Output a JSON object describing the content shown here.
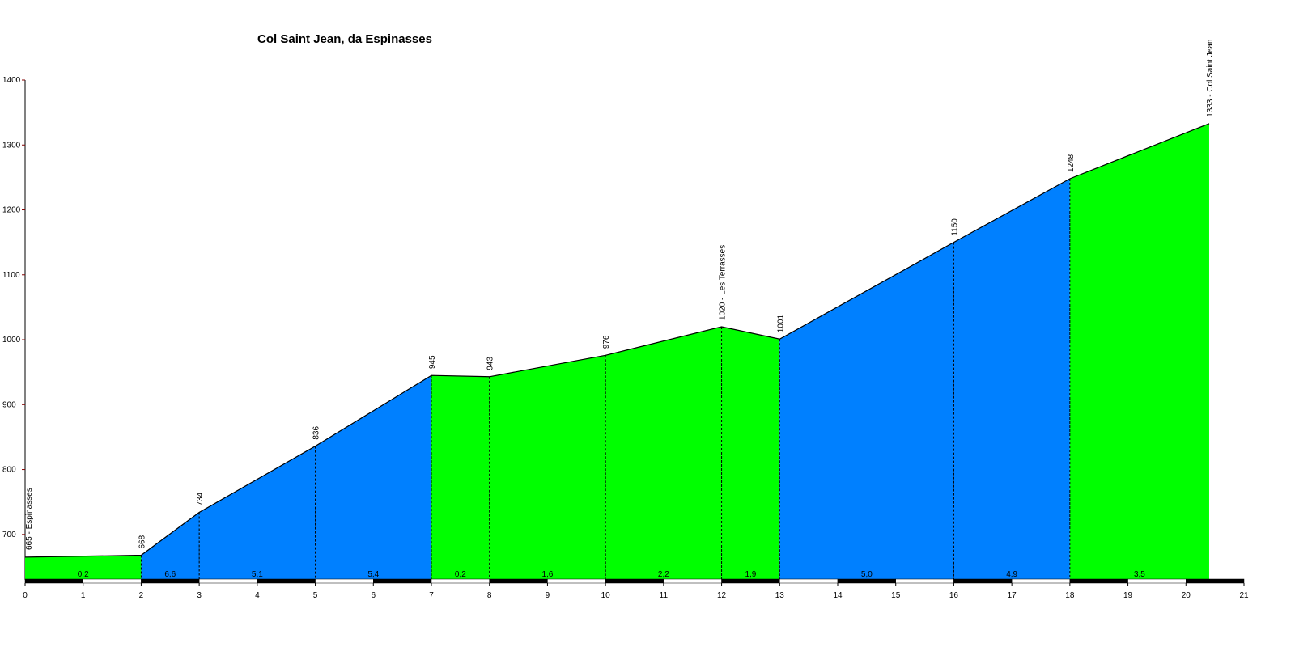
{
  "chart_data": {
    "type": "area",
    "title": "Col Saint Jean, da Espinasses",
    "x": [
      0,
      2,
      3,
      5,
      7,
      8,
      10,
      12,
      13,
      16,
      18,
      20.4
    ],
    "values": [
      665,
      668,
      734,
      836,
      945,
      943,
      976,
      1020,
      1001,
      1150,
      1248,
      1333
    ],
    "value_labels": [
      "665 - Espinasses",
      "668",
      "734",
      "836",
      "945",
      "943",
      "976",
      "1020 - Les Terrasses",
      "1001",
      "1150",
      "1248",
      "1333 - Col Saint Jean"
    ],
    "segments": [
      {
        "label": "0,2",
        "color": "#00ff00"
      },
      {
        "label": "6,6",
        "color": "#0080ff"
      },
      {
        "label": "5,1",
        "color": "#0080ff"
      },
      {
        "label": "5,4",
        "color": "#0080ff"
      },
      {
        "label": "0,2",
        "color": "#00ff00"
      },
      {
        "label": "1,6",
        "color": "#00ff00"
      },
      {
        "label": "2,2",
        "color": "#00ff00"
      },
      {
        "label": "1,9",
        "color": "#00ff00"
      },
      {
        "label": "5,0",
        "color": "#0080ff"
      },
      {
        "label": "4,9",
        "color": "#0080ff"
      },
      {
        "label": "3,5",
        "color": "#00ff00"
      }
    ],
    "xlim": [
      0,
      21
    ],
    "xticks": [
      0,
      1,
      2,
      3,
      4,
      5,
      6,
      7,
      8,
      9,
      10,
      11,
      12,
      13,
      14,
      15,
      16,
      17,
      18,
      19,
      20,
      21
    ],
    "ylim": [
      630,
      1400
    ],
    "yticks": [
      700,
      800,
      900,
      1000,
      1100,
      1200,
      1300,
      1400
    ]
  }
}
